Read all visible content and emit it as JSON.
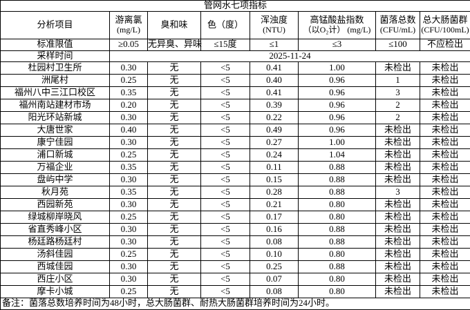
{
  "table": {
    "title": "管网水七项指标",
    "columns": [
      {
        "label": "分析项目",
        "unit": ""
      },
      {
        "label": "游离氯",
        "unit": "(mg/L)"
      },
      {
        "label": "臭和味",
        "unit": ""
      },
      {
        "label": "色（度）",
        "unit": ""
      },
      {
        "label": "浑浊度",
        "unit": "(NTU)"
      },
      {
        "label": "高锰酸盐指数",
        "unit": "（以O₂计） (mg/L)"
      },
      {
        "label": "菌落总数",
        "unit": "(CFU/mL)"
      },
      {
        "label": "总大肠菌群",
        "unit": "(CFU/100mL)"
      }
    ],
    "standard_limits": {
      "label": "标准限值",
      "values": [
        "≥0.05",
        "无异臭、异味",
        "≤15度",
        "≤1",
        "≤3",
        "≤100",
        "不应检出"
      ]
    },
    "sampling_time": {
      "label": "采样时间",
      "value": "2025-11-24"
    },
    "rows": [
      {
        "name": "杜园村卫生所",
        "values": [
          "0.30",
          "无",
          "<5",
          "0.41",
          "1.00",
          "未检出",
          "未检出"
        ]
      },
      {
        "name": "洲尾村",
        "values": [
          "0.25",
          "无",
          "<5",
          "0.40",
          "0.96",
          "1",
          "未检出"
        ]
      },
      {
        "name": "福州八中三江口校区",
        "values": [
          "0.35",
          "无",
          "<5",
          "0.41",
          "0.96",
          "3",
          "未检出"
        ]
      },
      {
        "name": "福州南站建材市场",
        "values": [
          "0.20",
          "无",
          "<5",
          "0.39",
          "0.96",
          "2",
          "未检出"
        ]
      },
      {
        "name": "阳光环站新城",
        "values": [
          "0.30",
          "无",
          "<5",
          "0.22",
          "0.96",
          "2",
          "未检出"
        ]
      },
      {
        "name": "大唐世家",
        "values": [
          "0.40",
          "无",
          "<5",
          "0.49",
          "0.96",
          "未检出",
          "未检出"
        ]
      },
      {
        "name": "康宁佳园",
        "values": [
          "0.30",
          "无",
          "<5",
          "0.27",
          "1.00",
          "未检出",
          "未检出"
        ]
      },
      {
        "name": "浦口新城",
        "values": [
          "0.25",
          "无",
          "<5",
          "0.24",
          "1.04",
          "未检出",
          "未检出"
        ]
      },
      {
        "name": "万福企业",
        "values": [
          "0.35",
          "无",
          "<5",
          "0.11",
          "0.88",
          "未检出",
          "未检出"
        ]
      },
      {
        "name": "盘屿中学",
        "values": [
          "0.30",
          "无",
          "<5",
          "0.15",
          "0.88",
          "未检出",
          "未检出"
        ]
      },
      {
        "name": "秋月苑",
        "values": [
          "0.35",
          "无",
          "<5",
          "0.28",
          "0.88",
          "3",
          "未检出"
        ]
      },
      {
        "name": "西园新苑",
        "values": [
          "0.30",
          "无",
          "<5",
          "0.21",
          "0.80",
          "未检出",
          "未检出"
        ]
      },
      {
        "name": "绿城柳岸晓风",
        "values": [
          "0.25",
          "无",
          "<5",
          "0.17",
          "0.80",
          "未检出",
          "未检出"
        ]
      },
      {
        "name": "省直秀峰小区",
        "values": [
          "0.30",
          "无",
          "<5",
          "0.16",
          "0.88",
          "未检出",
          "未检出"
        ]
      },
      {
        "name": "杨廷路杨廷村",
        "values": [
          "0.30",
          "无",
          "<5",
          "0.08",
          "0.88",
          "未检出",
          "未检出"
        ]
      },
      {
        "name": "汤斜佳园",
        "values": [
          "0.25",
          "无",
          "<5",
          "0.10",
          "0.80",
          "未检出",
          "未检出"
        ]
      },
      {
        "name": "西城佳园",
        "values": [
          "0.30",
          "无",
          "<5",
          "0.25",
          "0.88",
          "未检出",
          "未检出"
        ]
      },
      {
        "name": "西庄小区",
        "values": [
          "0.30",
          "无",
          "<5",
          "0.07",
          "0.80",
          "未检出",
          "未检出"
        ]
      },
      {
        "name": "摩卡小城",
        "values": [
          "0.25",
          "无",
          "<5",
          "0.08",
          "0.80",
          "未检出",
          "未检出"
        ]
      }
    ],
    "note": "备注：菌落总数培养时间为48小时，总大肠菌群、耐热大肠菌群培养时间为24小时。"
  },
  "colors": {
    "background": "#ffffff",
    "border": "#000000",
    "text": "#000000"
  }
}
